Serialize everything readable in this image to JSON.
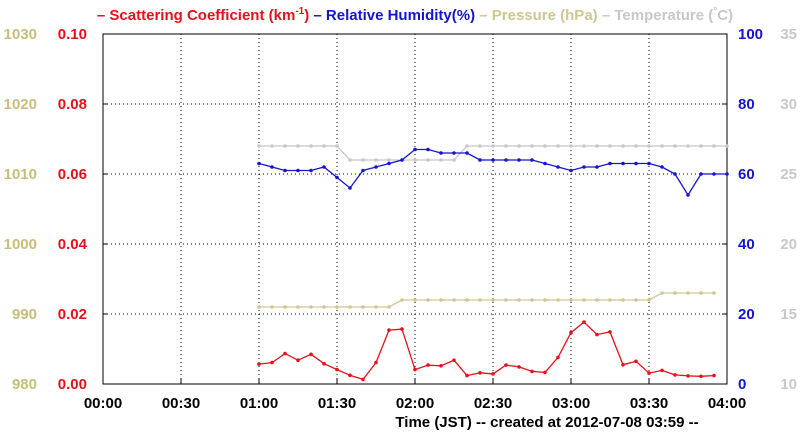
{
  "chart_data": {
    "type": "line",
    "title_segments": [
      {
        "text": "– Scattering Coefficient (km",
        "color": "#e8101a"
      },
      {
        "text": "-1",
        "color": "#e8101a",
        "sup": true
      },
      {
        "text": ")",
        "color": "#e8101a"
      },
      {
        "text": " – Relative Humidity(%)",
        "color": "#1515d0"
      },
      {
        "text": " – Pressure (hPa)",
        "color": "#d0c690"
      },
      {
        "text": " – Temperature (",
        "color": "#c8c8c8"
      },
      {
        "text": "°",
        "color": "#c8c8c8",
        "sup": true
      },
      {
        "text": "C)",
        "color": "#c8c8c8"
      }
    ],
    "xlabel": "Time (JST)  -- created at 2012-07-08 03:59 --",
    "x_ticks": [
      "00:00",
      "00:30",
      "01:00",
      "01:30",
      "02:00",
      "02:30",
      "03:00",
      "03:30",
      "04:00"
    ],
    "xlim": [
      0,
      240
    ],
    "grid": true,
    "axes": {
      "pressure": {
        "side": "left-outer",
        "color": "#c8bd7a",
        "ylim": [
          980,
          1030
        ],
        "ticks": [
          "980",
          "990",
          "1000",
          "1010",
          "1020",
          "1030"
        ]
      },
      "scattering": {
        "side": "left-inner",
        "color": "#e8101a",
        "ylim": [
          0,
          0.1
        ],
        "ticks": [
          "0.00",
          "0.02",
          "0.04",
          "0.06",
          "0.08",
          "0.10"
        ]
      },
      "humidity": {
        "side": "right-inner",
        "color": "#1515d0",
        "ylim": [
          0,
          100
        ],
        "ticks": [
          "0",
          "20",
          "40",
          "60",
          "80",
          "100"
        ]
      },
      "temperature": {
        "side": "right-outer",
        "color": "#c8c8c8",
        "ylim": [
          10,
          35
        ],
        "ticks": [
          "10",
          "15",
          "20",
          "25",
          "30",
          "35"
        ]
      }
    },
    "series": [
      {
        "name": "Scattering Coefficient",
        "axis": "scattering",
        "color": "#e8101a",
        "x": [
          60,
          65,
          70,
          75,
          80,
          85,
          90,
          95,
          100,
          105,
          110,
          115,
          120,
          125,
          130,
          135,
          140,
          145,
          150,
          155,
          160,
          165,
          170,
          175,
          180,
          185,
          190,
          195,
          200,
          205,
          210,
          215,
          220,
          225,
          230,
          235
        ],
        "values": [
          0.0057,
          0.0061,
          0.0087,
          0.0068,
          0.0085,
          0.0058,
          0.0041,
          0.0025,
          0.0013,
          0.0061,
          0.0154,
          0.0157,
          0.0041,
          0.0054,
          0.0052,
          0.0068,
          0.0024,
          0.0032,
          0.0029,
          0.0054,
          0.0049,
          0.0036,
          0.0033,
          0.0076,
          0.0147,
          0.0177,
          0.0141,
          0.0149,
          0.0055,
          0.0065,
          0.0031,
          0.0039,
          0.0026,
          0.0023,
          0.0022,
          0.0024
        ]
      },
      {
        "name": "Relative Humidity",
        "axis": "humidity",
        "color": "#1515d0",
        "x": [
          60,
          65,
          70,
          75,
          80,
          85,
          90,
          95,
          100,
          105,
          110,
          115,
          120,
          125,
          130,
          135,
          140,
          145,
          150,
          155,
          160,
          165,
          170,
          175,
          180,
          185,
          190,
          195,
          200,
          205,
          210,
          215,
          220,
          225,
          230,
          235,
          240
        ],
        "values": [
          63,
          62,
          61,
          61,
          61,
          62,
          59,
          56,
          61,
          62,
          63,
          64,
          67,
          67,
          66,
          66,
          66,
          64,
          64,
          64,
          64,
          64,
          63,
          62,
          61,
          62,
          62,
          63,
          63,
          63,
          63,
          62,
          60,
          54,
          60,
          60,
          60
        ]
      },
      {
        "name": "Pressure",
        "axis": "pressure",
        "color": "#d0c690",
        "x": [
          60,
          65,
          70,
          75,
          80,
          85,
          90,
          95,
          100,
          105,
          110,
          115,
          120,
          125,
          130,
          135,
          140,
          145,
          150,
          155,
          160,
          165,
          170,
          175,
          180,
          185,
          190,
          195,
          200,
          205,
          210,
          215,
          220,
          225,
          230,
          235
        ],
        "values": [
          991,
          991,
          991,
          991,
          991,
          991,
          991,
          991,
          991,
          991,
          991,
          992,
          992,
          992,
          992,
          992,
          992,
          992,
          992,
          992,
          992,
          992,
          992,
          992,
          992,
          992,
          992,
          992,
          992,
          992,
          992,
          993,
          993,
          993,
          993,
          993
        ]
      },
      {
        "name": "Temperature",
        "axis": "temperature",
        "color": "#c8c8c8",
        "x": [
          60,
          65,
          70,
          75,
          80,
          85,
          90,
          95,
          100,
          105,
          110,
          115,
          120,
          125,
          130,
          135,
          140,
          145,
          150,
          155,
          160,
          165,
          170,
          175,
          180,
          185,
          190,
          195,
          200,
          205,
          210,
          215,
          220,
          225,
          230,
          235,
          240
        ],
        "values": [
          27,
          27,
          27,
          27,
          27,
          27,
          27,
          26,
          26,
          26,
          26,
          26,
          26,
          26,
          26,
          26,
          27,
          27,
          27,
          27,
          27,
          27,
          27,
          27,
          27,
          27,
          27,
          27,
          27,
          27,
          27,
          27,
          27,
          27,
          27,
          27,
          27
        ]
      }
    ]
  }
}
